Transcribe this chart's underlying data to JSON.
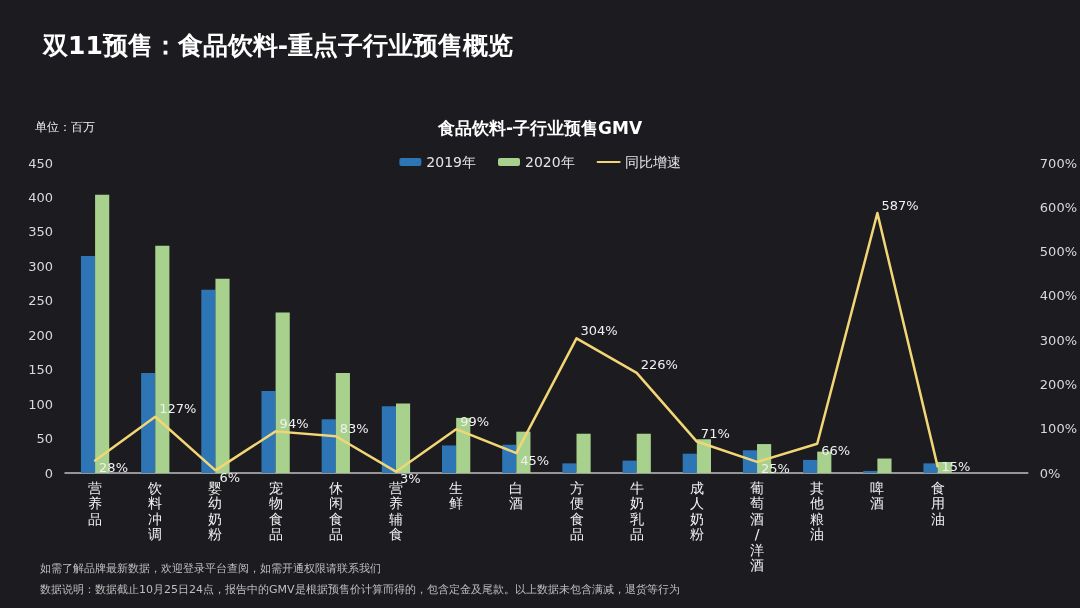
{
  "chart_data": {
    "type": "bar",
    "title": "双11预售：食品饮料-重点子行业预售概览",
    "subtitle": "食品饮料-子行业预售GMV",
    "ylabel": "单位：百万",
    "annotations": [
      "如需了解品牌最新数据，欢迎登录平台查阅，如需开通权限请联系我们",
      "数据说明：数据截止10月25日24点，报告中的GMV是根据预售价计算而得的，包含定金及尾款。以上数据未包含满减，退货等行为"
    ],
    "categories": [
      "营养品",
      "饮料冲调",
      "婴幼奶粉",
      "宠物食品",
      "休闲食品",
      "营养辅食",
      "生鲜",
      "白酒",
      "方便食品",
      "牛奶乳品",
      "成人奶粉",
      "葡萄酒/洋酒",
      "其他粮油",
      "啤酒",
      "食用油",
      null
    ],
    "series": [
      {
        "name": "2019年",
        "color": "#2e75b6",
        "values": [
          315,
          145,
          266,
          119,
          78,
          97,
          40,
          41,
          14,
          18,
          28,
          33,
          19,
          3,
          14,
          null
        ]
      },
      {
        "name": "2020年",
        "color": "#a9d18e",
        "values": [
          404,
          330,
          282,
          233,
          145,
          101,
          80,
          60,
          57,
          57,
          49,
          42,
          31,
          21,
          16,
          null
        ]
      },
      {
        "name": "同比增速",
        "type": "line",
        "axis": "y2",
        "color": "#f2d675",
        "values": [
          28,
          127,
          6,
          94,
          83,
          3,
          99,
          45,
          304,
          226,
          71,
          25,
          66,
          587,
          15,
          null
        ],
        "value_labels": [
          "28%",
          "127%",
          "6%",
          "94%",
          "83%",
          "3%",
          "99%",
          "45%",
          "304%",
          "226%",
          "71%",
          "25%",
          "66%",
          "587%",
          "15%",
          null
        ]
      }
    ],
    "ylim": [
      0,
      450
    ],
    "yticks": [
      0,
      50,
      100,
      150,
      200,
      250,
      300,
      350,
      400,
      450
    ],
    "y2lim": [
      0,
      700
    ],
    "y2ticks": [
      {
        "value": 0,
        "label": "0%"
      },
      {
        "value": 100,
        "label": "100%"
      },
      {
        "value": 200,
        "label": "200%"
      },
      {
        "value": 300,
        "label": "300%"
      },
      {
        "value": 400,
        "label": "400%"
      },
      {
        "value": 500,
        "label": "500%"
      },
      {
        "value": 600,
        "label": "600%"
      },
      {
        "value": 700,
        "label": "700%"
      }
    ],
    "legend": "top",
    "marker": "none",
    "line_style": "solid"
  }
}
